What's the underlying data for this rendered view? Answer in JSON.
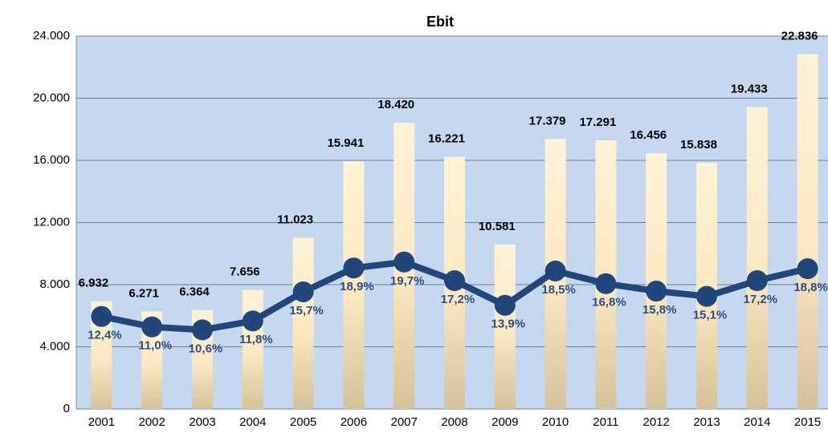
{
  "chart_data": {
    "type": "bar-line",
    "title": "Ebit",
    "categories": [
      "2001",
      "2002",
      "2003",
      "2004",
      "2005",
      "2006",
      "2007",
      "2008",
      "2009",
      "2010",
      "2011",
      "2012",
      "2013",
      "2014",
      "2015"
    ],
    "series": [
      {
        "type": "bar",
        "color": "#fdeecb",
        "values": [
          6932,
          6271,
          6364,
          7656,
          11023,
          15941,
          18420,
          16221,
          10581,
          17379,
          17291,
          16456,
          15838,
          19433,
          22836
        ],
        "value_labels": [
          "6.932",
          "6.271",
          "6.364",
          "7.656",
          "11.023",
          "15.941",
          "18.420",
          "16.221",
          "10.581",
          "17.379",
          "17.291",
          "16.456",
          "15.838",
          "19.433",
          "22.836"
        ]
      },
      {
        "type": "line",
        "axis": "y2",
        "color": "#21467c",
        "values": [
          12.4,
          11.0,
          10.6,
          11.8,
          15.7,
          18.9,
          19.7,
          17.2,
          13.9,
          18.5,
          16.8,
          15.8,
          15.1,
          17.2,
          18.8
        ],
        "value_labels": [
          "12,4%",
          "11,0%",
          "10,6%",
          "11,8%",
          "15,7%",
          "18,9%",
          "19,7%",
          "17,2%",
          "13,9%",
          "18,5%",
          "16,8%",
          "15,8%",
          "15,1%",
          "17,2%",
          "18,8%"
        ]
      }
    ],
    "ylim": [
      0,
      24000
    ],
    "yticks": [
      0,
      {
        "value": 4000,
        "label": "4.000"
      },
      {
        "value": 8000,
        "label": "8.000"
      },
      {
        "value": 12000,
        "label": "12.000"
      },
      {
        "value": 16000,
        "label": "16.000"
      },
      {
        "value": 20000,
        "label": "20.000"
      },
      {
        "value": 24000,
        "label": "24.000"
      }
    ],
    "y2lim": [
      0,
      50
    ],
    "grid": true
  }
}
